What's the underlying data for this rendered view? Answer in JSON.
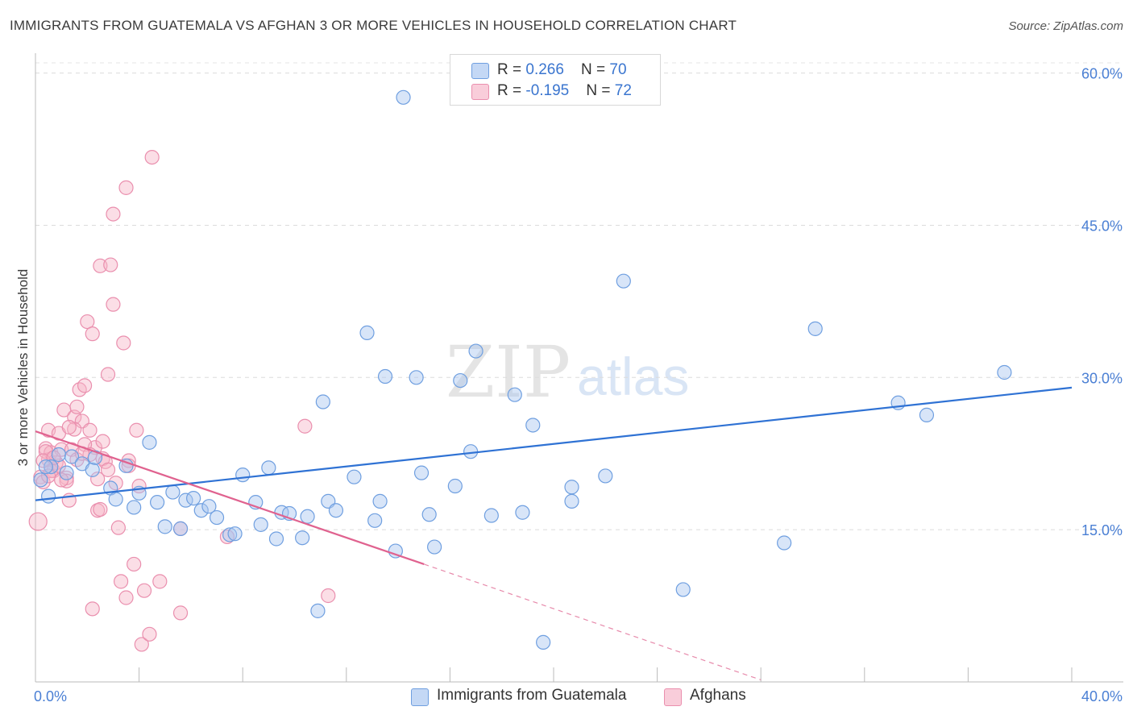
{
  "title": "IMMIGRANTS FROM GUATEMALA VS AFGHAN 3 OR MORE VEHICLES IN HOUSEHOLD CORRELATION CHART",
  "source": "Source: ZipAtlas.com",
  "watermark": {
    "zip": "ZIP",
    "atlas": "atlas"
  },
  "legend": {
    "rows": [
      {
        "r_label": "R = ",
        "r_value": "0.266",
        "n_label": "N = ",
        "n_value": "70",
        "color": "#a8c6f0"
      },
      {
        "r_label": "R = ",
        "r_value": "-0.195",
        "n_label": "N = ",
        "n_value": "72",
        "color": "#f6b5c8"
      }
    ]
  },
  "bottom_legend": [
    {
      "label": "Immigrants from Guatemala",
      "color": "#a8c6f0"
    },
    {
      "label": "Afghans",
      "color": "#f6b5c8"
    }
  ],
  "chart_data": {
    "type": "scatter",
    "title": "IMMIGRANTS FROM GUATEMALA VS AFGHAN 3 OR MORE VEHICLES IN HOUSEHOLD CORRELATION CHART",
    "xlabel": "",
    "ylabel": "3 or more Vehicles in Household",
    "xlim": [
      0,
      40
    ],
    "ylim": [
      0,
      61
    ],
    "x_tick_labels": [
      "0.0%",
      "40.0%"
    ],
    "y_ticks": [
      15,
      30,
      45,
      60
    ],
    "y_tick_labels": [
      "15.0%",
      "30.0%",
      "45.0%",
      "60.0%"
    ],
    "grid": true,
    "series": [
      {
        "name": "Immigrants from Guatemala",
        "color": "#6f9fe0",
        "fill": "#a8c6f0",
        "trend": {
          "x": [
            0,
            40
          ],
          "y": [
            17.9,
            29.0
          ]
        },
        "points": [
          [
            0.2,
            19.9
          ],
          [
            0.5,
            18.3
          ],
          [
            0.6,
            21.2
          ],
          [
            0.9,
            22.4
          ],
          [
            1.2,
            20.6
          ],
          [
            1.4,
            22.2
          ],
          [
            1.8,
            21.5
          ],
          [
            2.2,
            20.9
          ],
          [
            2.3,
            22.1
          ],
          [
            2.9,
            19.1
          ],
          [
            3.1,
            18.0
          ],
          [
            3.5,
            21.3
          ],
          [
            3.8,
            17.2
          ],
          [
            4.0,
            18.6
          ],
          [
            4.4,
            23.6
          ],
          [
            4.7,
            17.7
          ],
          [
            5.0,
            15.3
          ],
          [
            5.3,
            18.7
          ],
          [
            5.6,
            15.1
          ],
          [
            5.8,
            17.9
          ],
          [
            6.1,
            18.1
          ],
          [
            6.4,
            16.9
          ],
          [
            6.7,
            17.3
          ],
          [
            7.0,
            16.2
          ],
          [
            7.5,
            14.5
          ],
          [
            7.7,
            14.6
          ],
          [
            8.0,
            20.4
          ],
          [
            8.5,
            17.7
          ],
          [
            8.7,
            15.5
          ],
          [
            9.0,
            21.1
          ],
          [
            9.3,
            14.1
          ],
          [
            9.5,
            16.7
          ],
          [
            9.8,
            16.6
          ],
          [
            10.3,
            14.2
          ],
          [
            10.5,
            16.3
          ],
          [
            10.9,
            7.0
          ],
          [
            11.1,
            27.6
          ],
          [
            11.3,
            17.8
          ],
          [
            11.6,
            16.9
          ],
          [
            12.3,
            20.2
          ],
          [
            12.8,
            34.4
          ],
          [
            13.1,
            15.9
          ],
          [
            13.3,
            17.8
          ],
          [
            13.5,
            30.1
          ],
          [
            13.9,
            12.9
          ],
          [
            14.2,
            57.6
          ],
          [
            14.7,
            30.0
          ],
          [
            14.9,
            20.6
          ],
          [
            15.2,
            16.5
          ],
          [
            15.4,
            13.3
          ],
          [
            16.2,
            19.3
          ],
          [
            16.4,
            29.7
          ],
          [
            16.8,
            22.7
          ],
          [
            17.0,
            32.6
          ],
          [
            17.6,
            16.4
          ],
          [
            18.5,
            28.3
          ],
          [
            18.8,
            16.7
          ],
          [
            19.2,
            25.3
          ],
          [
            19.6,
            3.9
          ],
          [
            20.7,
            19.2
          ],
          [
            20.7,
            17.8
          ],
          [
            22.0,
            20.3
          ],
          [
            22.7,
            39.5
          ],
          [
            25.0,
            9.1
          ],
          [
            28.9,
            13.7
          ],
          [
            30.1,
            34.8
          ],
          [
            33.3,
            27.5
          ],
          [
            34.4,
            26.3
          ],
          [
            37.4,
            30.5
          ],
          [
            0.4,
            21.2
          ]
        ]
      },
      {
        "name": "Afghans",
        "color": "#ea8fae",
        "fill": "#f6b5c8",
        "trend": {
          "x": [
            0,
            15
          ],
          "y": [
            24.7,
            11.6
          ]
        },
        "trend_extension": {
          "x": [
            15,
            28
          ],
          "y": [
            11.6,
            0.2
          ]
        },
        "points": [
          [
            0.1,
            15.8
          ],
          [
            0.2,
            20.2
          ],
          [
            0.3,
            19.7
          ],
          [
            0.4,
            23.0
          ],
          [
            0.5,
            21.9
          ],
          [
            0.5,
            24.8
          ],
          [
            0.6,
            22.6
          ],
          [
            0.7,
            20.8
          ],
          [
            0.8,
            21.6
          ],
          [
            0.9,
            24.5
          ],
          [
            1.0,
            22.9
          ],
          [
            1.1,
            26.8
          ],
          [
            1.2,
            20.1
          ],
          [
            1.3,
            17.9
          ],
          [
            1.4,
            22.9
          ],
          [
            1.5,
            26.1
          ],
          [
            1.6,
            27.1
          ],
          [
            1.7,
            28.8
          ],
          [
            1.8,
            25.7
          ],
          [
            1.9,
            29.2
          ],
          [
            2.0,
            35.5
          ],
          [
            2.1,
            24.8
          ],
          [
            2.2,
            34.3
          ],
          [
            2.3,
            23.1
          ],
          [
            2.4,
            16.9
          ],
          [
            2.5,
            41.0
          ],
          [
            2.6,
            22.0
          ],
          [
            2.7,
            21.7
          ],
          [
            2.8,
            30.3
          ],
          [
            2.9,
            41.1
          ],
          [
            3.0,
            37.2
          ],
          [
            3.1,
            19.6
          ],
          [
            3.2,
            15.2
          ],
          [
            3.3,
            9.9
          ],
          [
            3.4,
            33.4
          ],
          [
            3.5,
            48.7
          ],
          [
            3.6,
            21.8
          ],
          [
            3.8,
            11.6
          ],
          [
            3.9,
            24.8
          ],
          [
            4.0,
            19.3
          ],
          [
            4.1,
            3.7
          ],
          [
            4.2,
            9.0
          ],
          [
            4.4,
            4.7
          ],
          [
            4.5,
            51.7
          ],
          [
            4.8,
            9.9
          ],
          [
            5.6,
            15.1
          ],
          [
            5.6,
            6.8
          ],
          [
            7.4,
            14.3
          ],
          [
            10.4,
            25.2
          ],
          [
            11.3,
            8.5
          ],
          [
            3.0,
            46.1
          ],
          [
            2.2,
            7.2
          ],
          [
            1.6,
            21.9
          ],
          [
            2.5,
            17.0
          ],
          [
            3.5,
            8.3
          ],
          [
            1.2,
            19.8
          ],
          [
            0.6,
            20.8
          ],
          [
            0.4,
            22.7
          ],
          [
            1.9,
            23.4
          ],
          [
            2.8,
            20.9
          ],
          [
            0.3,
            21.8
          ],
          [
            0.9,
            21.3
          ],
          [
            1.5,
            24.9
          ],
          [
            2.1,
            22.4
          ],
          [
            2.4,
            20.0
          ],
          [
            1.0,
            19.9
          ],
          [
            0.7,
            22.1
          ],
          [
            1.3,
            25.1
          ],
          [
            1.8,
            22.5
          ],
          [
            3.6,
            21.3
          ],
          [
            2.6,
            23.7
          ],
          [
            0.5,
            20.3
          ]
        ]
      }
    ]
  }
}
